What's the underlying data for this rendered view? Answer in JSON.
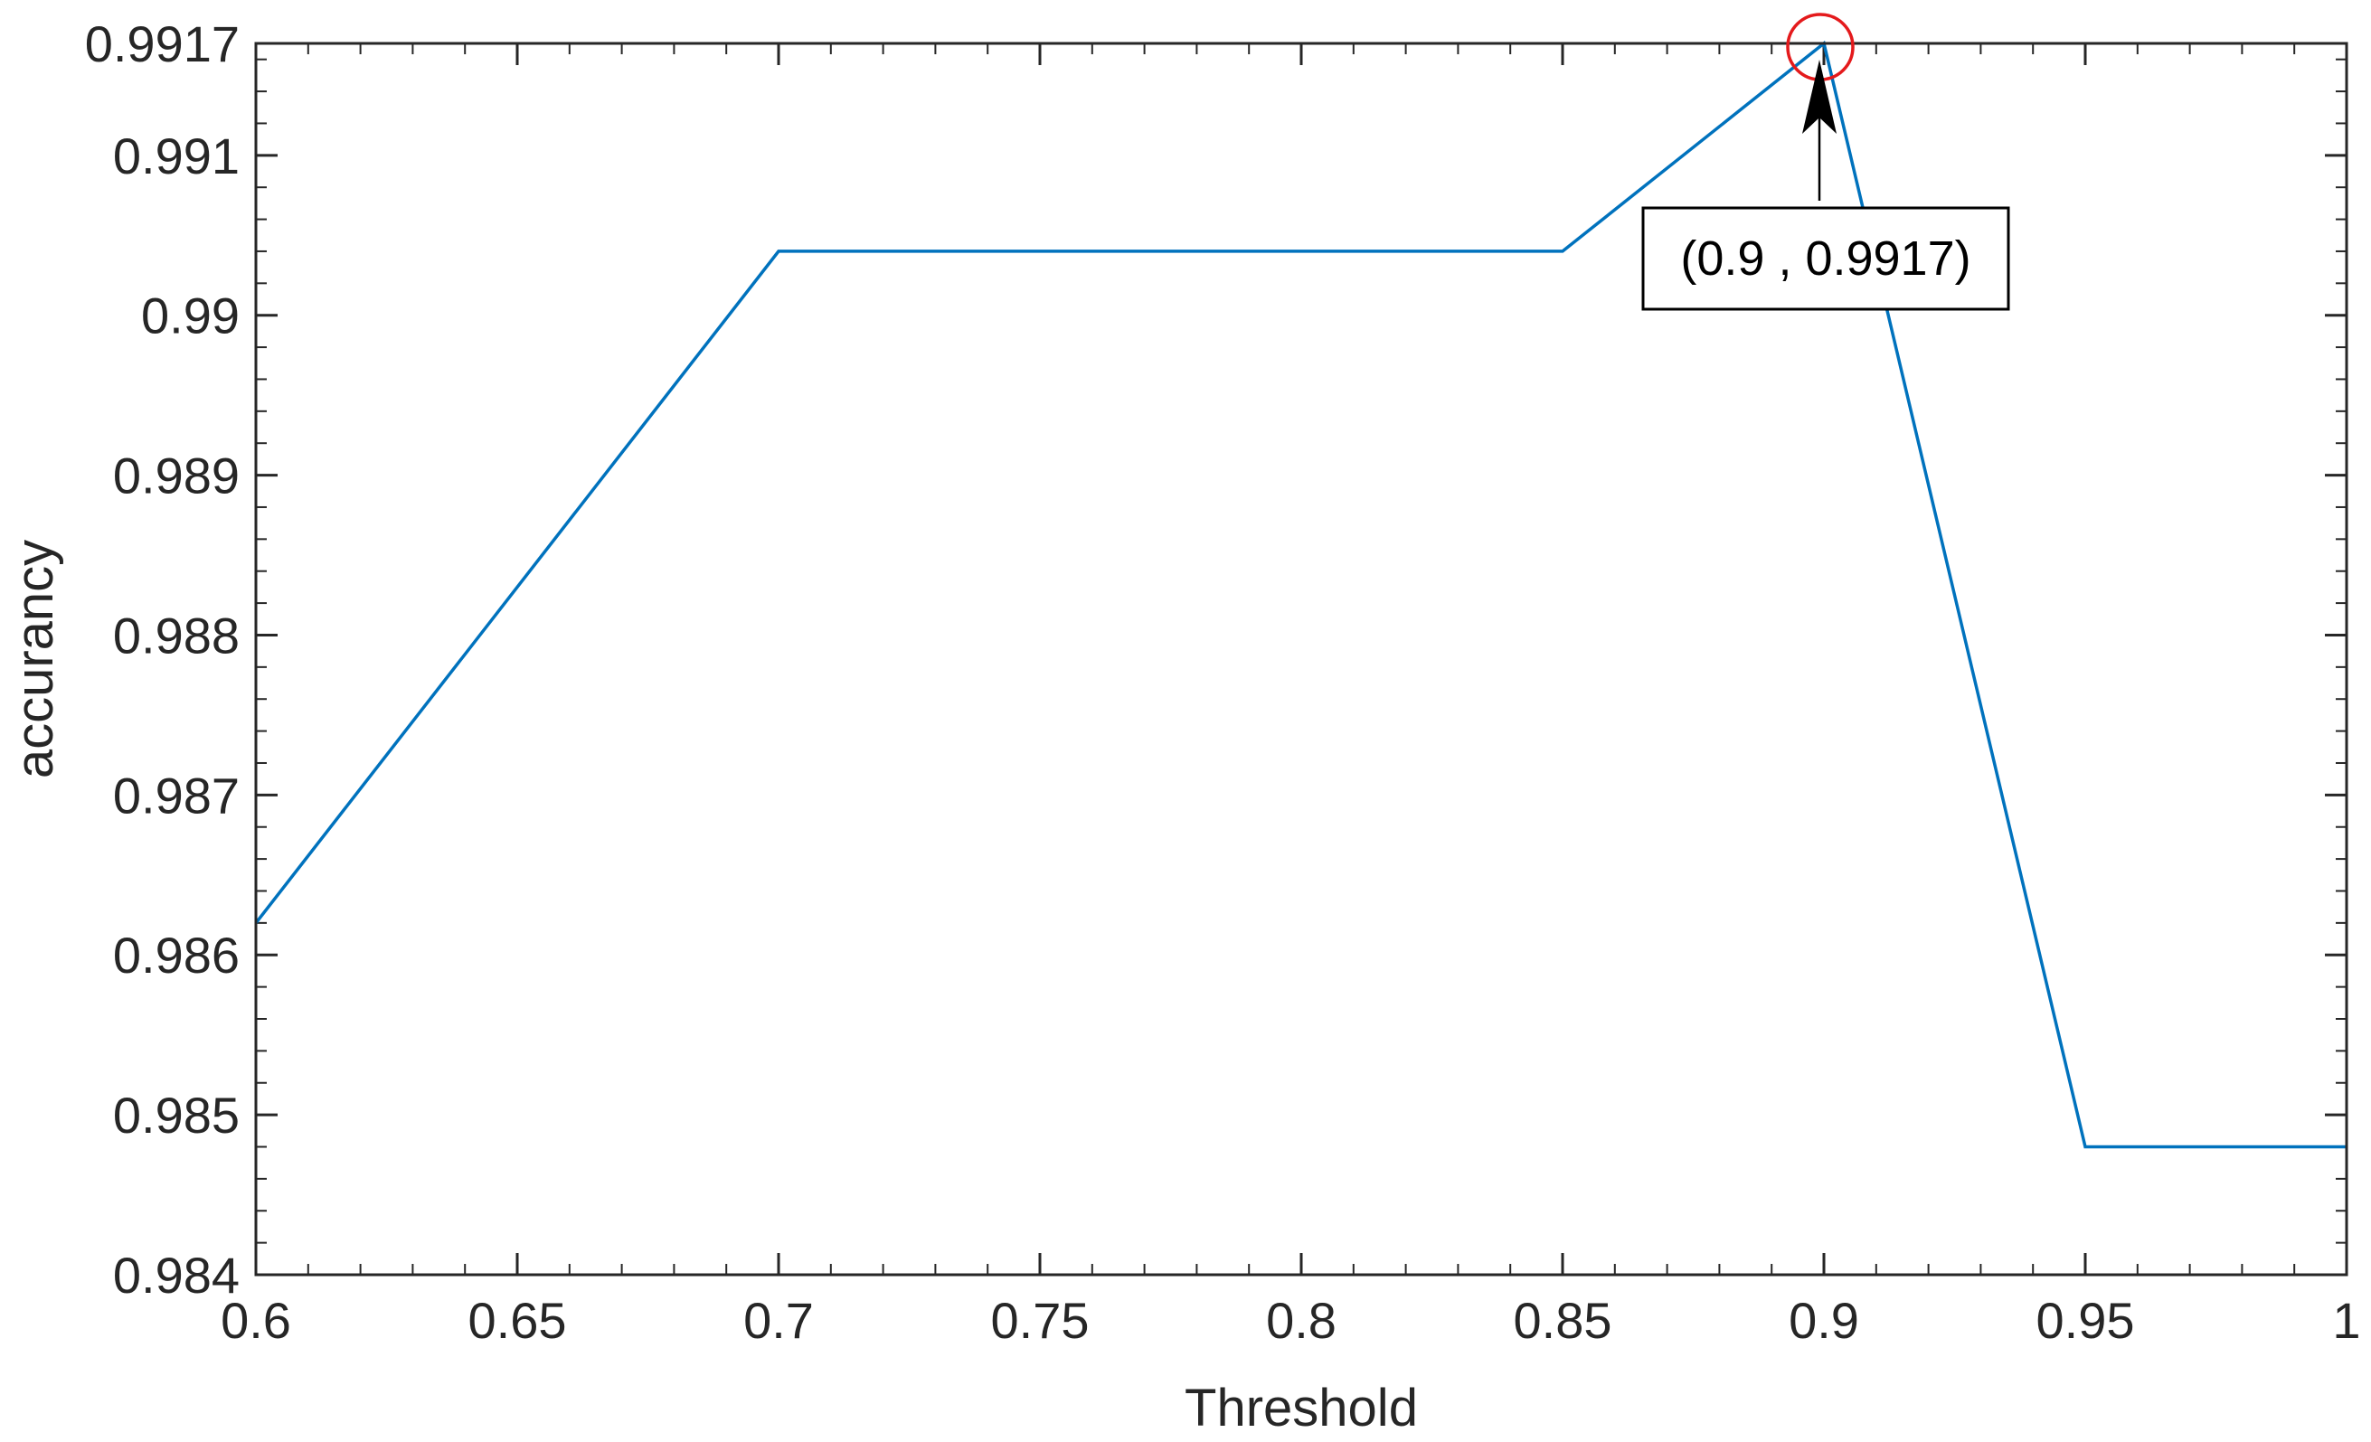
{
  "chart_data": {
    "type": "line",
    "title": "",
    "xlabel": "Threshold",
    "ylabel": "accurancy",
    "xlim": [
      0.6,
      1
    ],
    "ylim": [
      0.984,
      0.9917
    ],
    "x_ticks": [
      "0.6",
      "0.65",
      "0.7",
      "0.75",
      "0.8",
      "0.85",
      "0.9",
      "0.95",
      "1"
    ],
    "y_ticks": [
      "0.984",
      "0.985",
      "0.986",
      "0.987",
      "0.988",
      "0.989",
      "0.99",
      "0.991",
      "0.9917"
    ],
    "x_tick_values": [
      0.6,
      0.65,
      0.7,
      0.75,
      0.8,
      0.85,
      0.9,
      0.95,
      1
    ],
    "y_tick_values": [
      0.984,
      0.985,
      0.986,
      0.987,
      0.988,
      0.989,
      0.99,
      0.991,
      0.9917
    ],
    "grid": false,
    "series": [
      {
        "color": "#0072BD",
        "x": [
          0.6,
          0.7,
          0.85,
          0.9,
          0.95,
          1
        ],
        "y": [
          0.9862,
          0.9904,
          0.9904,
          0.9917,
          0.9848,
          0.9848
        ]
      }
    ],
    "annotation": {
      "text": "(0.9 , 0.9917)",
      "point": [
        0.9,
        0.9917
      ],
      "marker_color": "#E41A1C"
    }
  }
}
